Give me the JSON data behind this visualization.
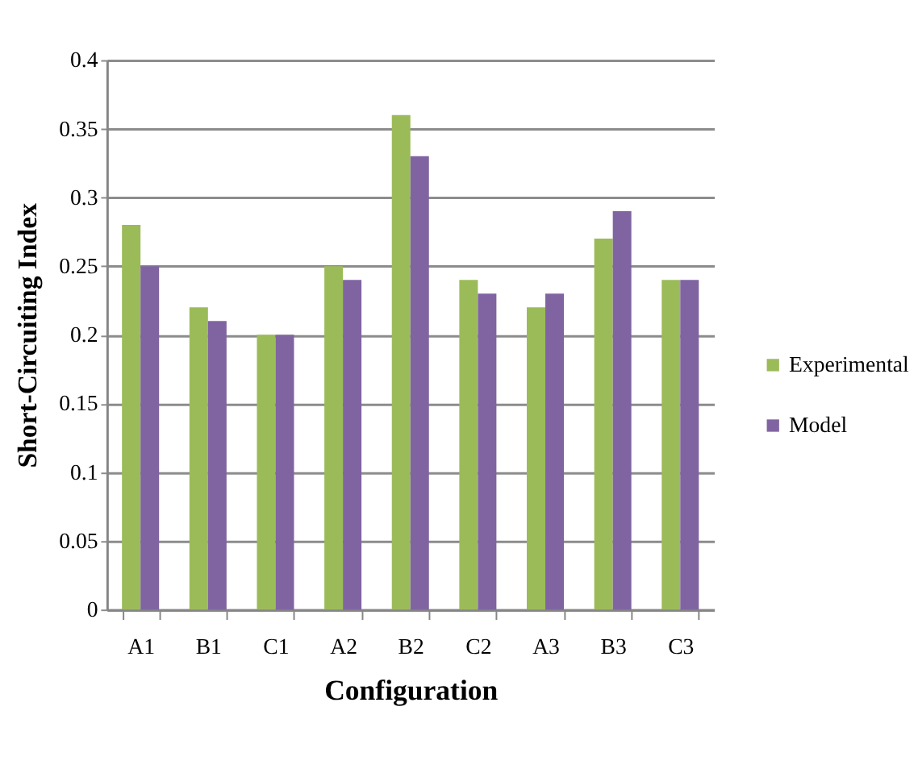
{
  "chart_data": {
    "type": "bar",
    "xlabel": "Configuration",
    "ylabel": "Short-Circuiting Index",
    "categories": [
      "A1",
      "B1",
      "C1",
      "A2",
      "B2",
      "C2",
      "A3",
      "B3",
      "C3"
    ],
    "series": [
      {
        "name": "Experimental",
        "color": "#9bbb59",
        "values": [
          0.28,
          0.22,
          0.2,
          0.25,
          0.36,
          0.24,
          0.22,
          0.27,
          0.24
        ]
      },
      {
        "name": "Model",
        "color": "#8064a2",
        "values": [
          0.25,
          0.21,
          0.2,
          0.24,
          0.33,
          0.23,
          0.23,
          0.29,
          0.24
        ]
      }
    ],
    "ylim": [
      0,
      0.4
    ],
    "yticks": [
      0,
      0.05,
      0.1,
      0.15,
      0.2,
      0.25,
      0.3,
      0.35,
      0.4
    ],
    "grid": "y",
    "legend": "right"
  }
}
